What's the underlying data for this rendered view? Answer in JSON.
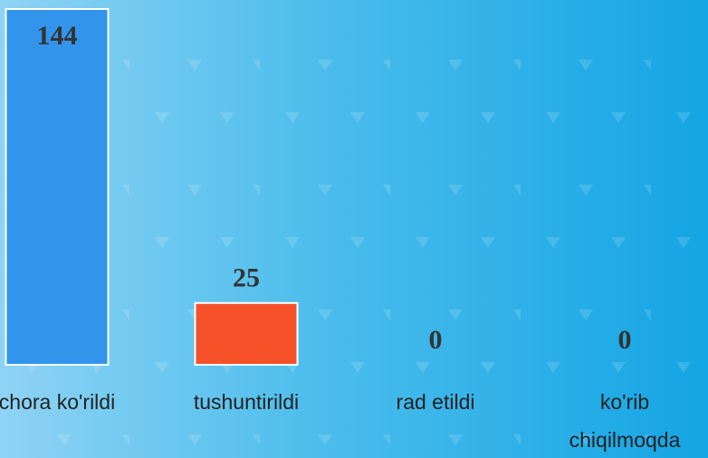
{
  "chart_data": {
    "type": "bar",
    "categories": [
      "chora ko'rildi",
      "tushuntirildi",
      "rad etildi",
      "ko'rib chiqilmoqda"
    ],
    "values": [
      144,
      25,
      0,
      0
    ],
    "colors": [
      "#3394ec",
      "#f75129",
      "#3394ec",
      "#3394ec"
    ]
  }
}
